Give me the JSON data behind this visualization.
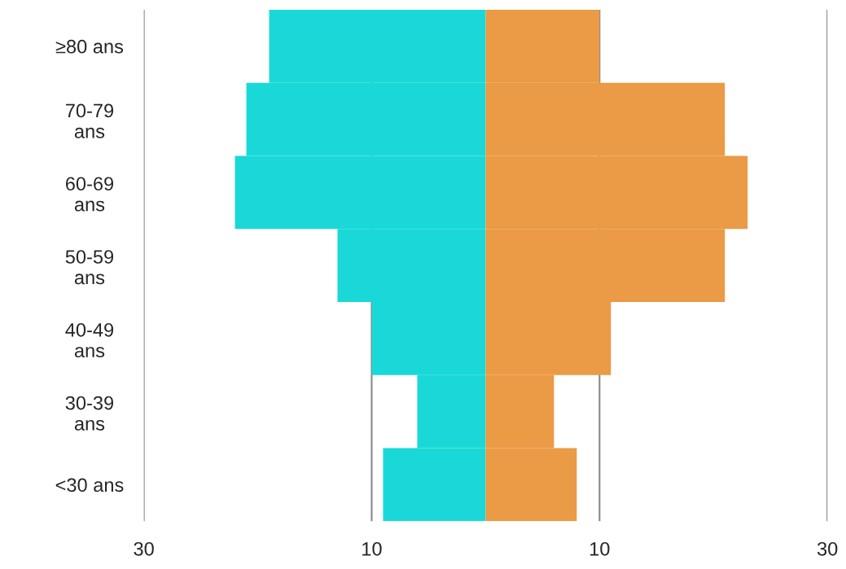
{
  "chart_data": {
    "type": "bar",
    "orientation": "horizontal",
    "stacked": true,
    "categories": [
      "≥80 ans",
      "70-79\nans",
      "60-69\nans",
      "50-59\nans",
      "40-49\nans",
      "30-39\nans",
      "<30 ans"
    ],
    "series": [
      {
        "color": "#1ad8d8",
        "values": [
          -19,
          -21,
          -22,
          -13,
          -10,
          -6,
          -9
        ]
      },
      {
        "color": "#eb9a45",
        "values": [
          10,
          21,
          23,
          21,
          11,
          6,
          8
        ]
      }
    ],
    "xlim": [
      -30,
      30
    ],
    "xticks": [
      {
        "value": -30,
        "label": "30"
      },
      {
        "value": -10,
        "label": "10"
      },
      10,
      30
    ],
    "grid": "x",
    "legend": false
  }
}
